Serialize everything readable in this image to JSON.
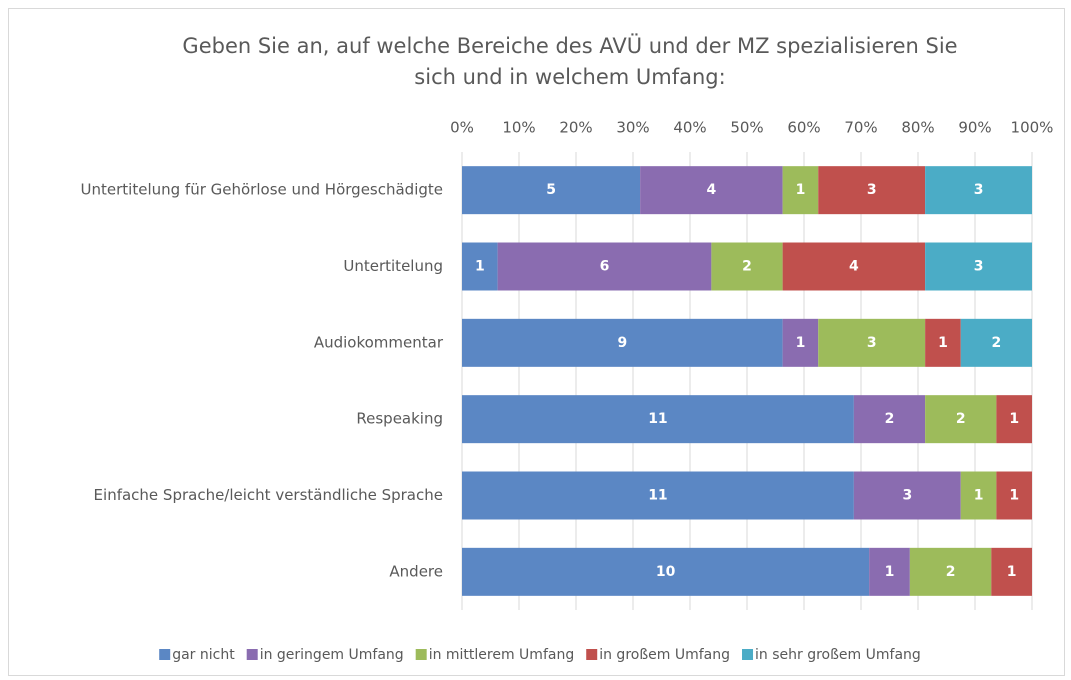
{
  "chart_data": {
    "type": "bar",
    "orientation": "horizontal",
    "percent_stacked": true,
    "title": [
      "Geben Sie an, auf welche Bereiche des AVÜ und der MZ spezialisieren Sie",
      "sich und in welchem Umfang:"
    ],
    "categories": [
      "Untertitelung für Gehörlose und Hörgeschädigte",
      "Untertitelung",
      "Audiokommentar",
      "Respeaking",
      "Einfache Sprache/leicht verständliche Sprache",
      "Andere"
    ],
    "series": [
      {
        "name": "gar nicht",
        "color": "#5b87c4",
        "values": [
          5,
          1,
          9,
          11,
          11,
          10
        ]
      },
      {
        "name": "in geringem Umfang",
        "color": "#8a6cb0",
        "values": [
          4,
          6,
          1,
          2,
          3,
          1
        ]
      },
      {
        "name": "in mittlerem Umfang",
        "color": "#9dbb5b",
        "values": [
          1,
          2,
          3,
          2,
          1,
          2
        ]
      },
      {
        "name": "in großem Umfang",
        "color": "#c0504d",
        "values": [
          3,
          4,
          1,
          1,
          1,
          1
        ]
      },
      {
        "name": "in sehr großem Umfang",
        "color": "#4bacc6",
        "values": [
          3,
          3,
          2,
          null,
          null,
          null
        ]
      }
    ],
    "xlim": [
      0,
      100
    ],
    "xticks": [
      {
        "value": 0,
        "label": "0%"
      },
      {
        "value": 10,
        "label": "10%"
      },
      {
        "value": 20,
        "label": "20%"
      },
      {
        "value": 30,
        "label": "30%"
      },
      {
        "value": 40,
        "label": "40%"
      },
      {
        "value": 50,
        "label": "50%"
      },
      {
        "value": 60,
        "label": "60%"
      },
      {
        "value": 70,
        "label": "70%"
      },
      {
        "value": 80,
        "label": "80%"
      },
      {
        "value": 90,
        "label": "90%"
      },
      {
        "value": 100,
        "label": "100%"
      }
    ],
    "grid": true,
    "legend": "bottom"
  }
}
